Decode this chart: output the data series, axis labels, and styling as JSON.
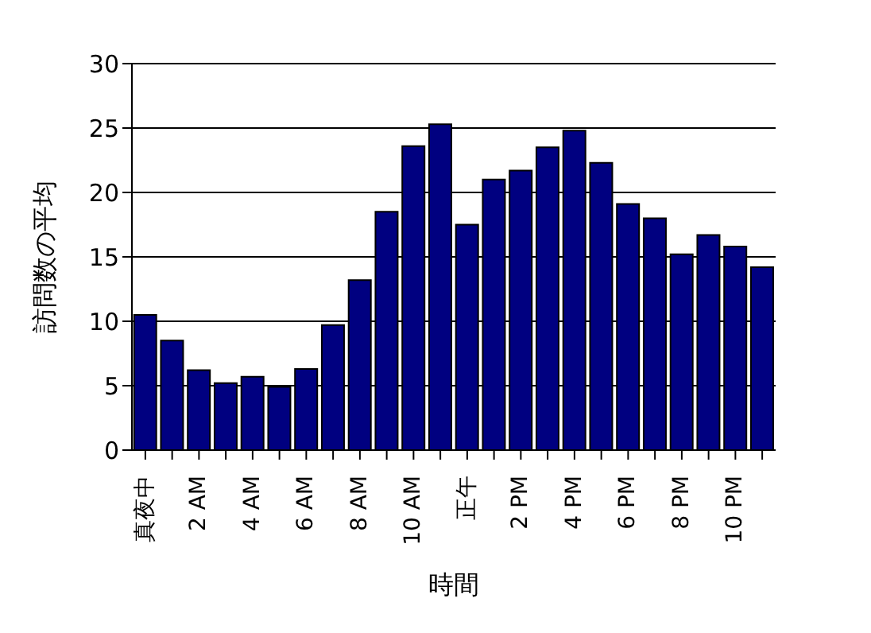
{
  "chart_data": {
    "type": "bar",
    "xlabel": "時間",
    "ylabel": "訪問数の平均",
    "categories": [
      "真夜中",
      null,
      "2 AM",
      null,
      "4 AM",
      null,
      "6 AM",
      null,
      "8 AM",
      null,
      "10 AM",
      null,
      "正午",
      null,
      "2 PM",
      null,
      "4 PM",
      null,
      "6 PM",
      null,
      "8 PM",
      null,
      "10 PM",
      null
    ],
    "values": [
      10.5,
      8.5,
      6.2,
      5.2,
      5.7,
      4.9,
      6.3,
      9.7,
      13.2,
      18.5,
      23.6,
      25.3,
      17.5,
      21,
      21.7,
      23.5,
      24.8,
      22.3,
      19.1,
      18,
      15.2,
      16.7,
      15.8,
      14.2
    ],
    "color": "#000080",
    "ylim": [
      0,
      30
    ],
    "yticks": [
      0,
      5,
      10,
      15,
      20,
      25,
      30
    ],
    "grid": "y"
  }
}
